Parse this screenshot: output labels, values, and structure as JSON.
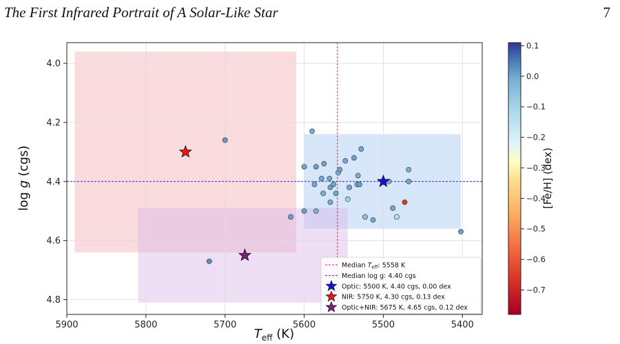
{
  "header": {
    "running_title": "The First Infrared Portrait of A Solar-Like Star",
    "page_number": "7"
  },
  "chart_data": {
    "type": "scatter",
    "xlabel": "T_eff (K)",
    "ylabel": "log g (cgs)",
    "xlim": [
      5900,
      5375
    ],
    "ylim": [
      4.85,
      3.93
    ],
    "x_ticks": [
      5900,
      5800,
      5700,
      5600,
      5500,
      5400
    ],
    "y_ticks": [
      4.0,
      4.2,
      4.4,
      4.6,
      4.8
    ],
    "grid": true,
    "colorbar": {
      "label": "[Fe/H] (dex)",
      "range": [
        -0.78,
        0.11
      ],
      "ticks": [
        "0.1",
        "0.0",
        "−0.1",
        "−0.2",
        "−0.3",
        "−0.4",
        "−0.5",
        "−0.6",
        "−0.7"
      ],
      "colormap": "RdYlBu"
    },
    "reference_lines": [
      {
        "orientation": "vertical",
        "value": 5558,
        "color": "#e8282b",
        "label": "Median T_eff: 5558 K"
      },
      {
        "orientation": "horizontal",
        "value": 4.4,
        "color": "#2a2ad6",
        "label": "Median log g: 4.40 cgs"
      }
    ],
    "regions": [
      {
        "x": [
          5890,
          5610
        ],
        "y": [
          3.96,
          4.64
        ],
        "color": "#f4b0b5"
      },
      {
        "x": [
          5600,
          5402
        ],
        "y": [
          4.24,
          4.56
        ],
        "color": "#a9c8f2"
      },
      {
        "x": [
          5810,
          5545
        ],
        "y": [
          4.49,
          4.81
        ],
        "color": "#d9b9e8"
      }
    ],
    "stars": [
      {
        "label": "Optic: 5500 K, 4.40 cgs, 0.00 dex",
        "teff": 5500,
        "logg": 4.4,
        "feh": 0.0,
        "color": "#1010e0"
      },
      {
        "label": "NIR: 5750 K, 4.30 cgs, 0.13 dex",
        "teff": 5750,
        "logg": 4.3,
        "feh": 0.13,
        "color": "#ee1414"
      },
      {
        "label": "Optic+NIR: 5675 K, 4.65 cgs, 0.12 dex",
        "teff": 5675,
        "logg": 4.65,
        "feh": 0.12,
        "color": "#7a1f80"
      }
    ],
    "legend_position": "lower-right",
    "points": [
      {
        "teff": 5700,
        "logg": 4.26,
        "feh": -0.04
      },
      {
        "teff": 5617,
        "logg": 4.52,
        "feh": -0.05
      },
      {
        "teff": 5720,
        "logg": 4.67,
        "feh": -0.02
      },
      {
        "teff": 5600,
        "logg": 4.35,
        "feh": -0.06
      },
      {
        "teff": 5600,
        "logg": 4.5,
        "feh": -0.05
      },
      {
        "teff": 5590,
        "logg": 4.23,
        "feh": -0.07
      },
      {
        "teff": 5587,
        "logg": 4.41,
        "feh": -0.06
      },
      {
        "teff": 5585,
        "logg": 4.35,
        "feh": -0.05
      },
      {
        "teff": 5585,
        "logg": 4.5,
        "feh": -0.08
      },
      {
        "teff": 5578,
        "logg": 4.39,
        "feh": -0.06
      },
      {
        "teff": 5576,
        "logg": 4.44,
        "feh": -0.07
      },
      {
        "teff": 5575,
        "logg": 4.34,
        "feh": -0.05
      },
      {
        "teff": 5568,
        "logg": 4.39,
        "feh": -0.06
      },
      {
        "teff": 5567,
        "logg": 4.42,
        "feh": -0.05
      },
      {
        "teff": 5567,
        "logg": 4.47,
        "feh": -0.07
      },
      {
        "teff": 5563,
        "logg": 4.41,
        "feh": -0.06
      },
      {
        "teff": 5560,
        "logg": 4.44,
        "feh": -0.06
      },
      {
        "teff": 5557,
        "logg": 4.37,
        "feh": -0.08
      },
      {
        "teff": 5555,
        "logg": 4.36,
        "feh": -0.05
      },
      {
        "teff": 5548,
        "logg": 4.33,
        "feh": -0.06
      },
      {
        "teff": 5545,
        "logg": 4.46,
        "feh": -0.14
      },
      {
        "teff": 5543,
        "logg": 4.42,
        "feh": -0.06
      },
      {
        "teff": 5537,
        "logg": 4.32,
        "feh": -0.05
      },
      {
        "teff": 5533,
        "logg": 4.41,
        "feh": -0.06
      },
      {
        "teff": 5532,
        "logg": 4.38,
        "feh": -0.07
      },
      {
        "teff": 5530,
        "logg": 4.41,
        "feh": -0.05
      },
      {
        "teff": 5528,
        "logg": 4.29,
        "feh": -0.06
      },
      {
        "teff": 5523,
        "logg": 4.52,
        "feh": -0.11
      },
      {
        "teff": 5513,
        "logg": 4.53,
        "feh": -0.06
      },
      {
        "teff": 5493,
        "logg": 4.4,
        "feh": -0.07
      },
      {
        "teff": 5488,
        "logg": 4.49,
        "feh": -0.06
      },
      {
        "teff": 5483,
        "logg": 4.52,
        "feh": -0.18
      },
      {
        "teff": 5473,
        "logg": 4.47,
        "feh": -0.68
      },
      {
        "teff": 5468,
        "logg": 4.36,
        "feh": -0.07
      },
      {
        "teff": 5468,
        "logg": 4.4,
        "feh": -0.06
      },
      {
        "teff": 5402,
        "logg": 4.57,
        "feh": -0.05
      }
    ]
  }
}
